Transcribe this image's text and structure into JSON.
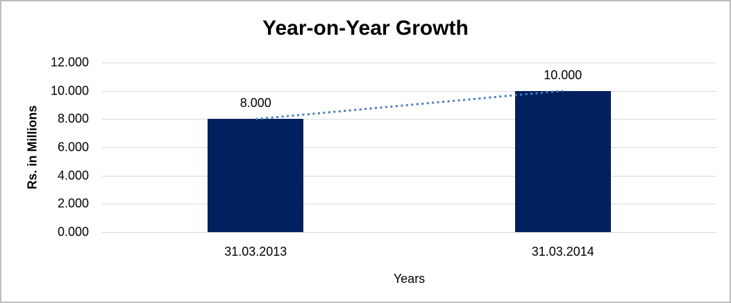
{
  "chart_data": {
    "type": "bar",
    "title": "Year-on-Year Growth",
    "xlabel": "Years",
    "ylabel": "Rs. in Millions",
    "categories": [
      "31.03.2013",
      "31.03.2014"
    ],
    "values": [
      8,
      10
    ],
    "value_labels": [
      "8.000",
      "10.000"
    ],
    "ylim": [
      0,
      12
    ],
    "ytick_step": 2,
    "ytick_labels": [
      "0.000",
      "2.000",
      "4.000",
      "6.000",
      "8.000",
      "10.000",
      "12.000"
    ],
    "grid": "horizontal",
    "legend": "none",
    "trendline": {
      "style": "dotted",
      "connects": "bar tops",
      "color": "#4a7ebb"
    },
    "colors": {
      "bar": "#002060",
      "gridline": "#d9d9d9",
      "text": "#000000",
      "canvas_border": "#bdbdbd",
      "background": "#ffffff"
    }
  }
}
